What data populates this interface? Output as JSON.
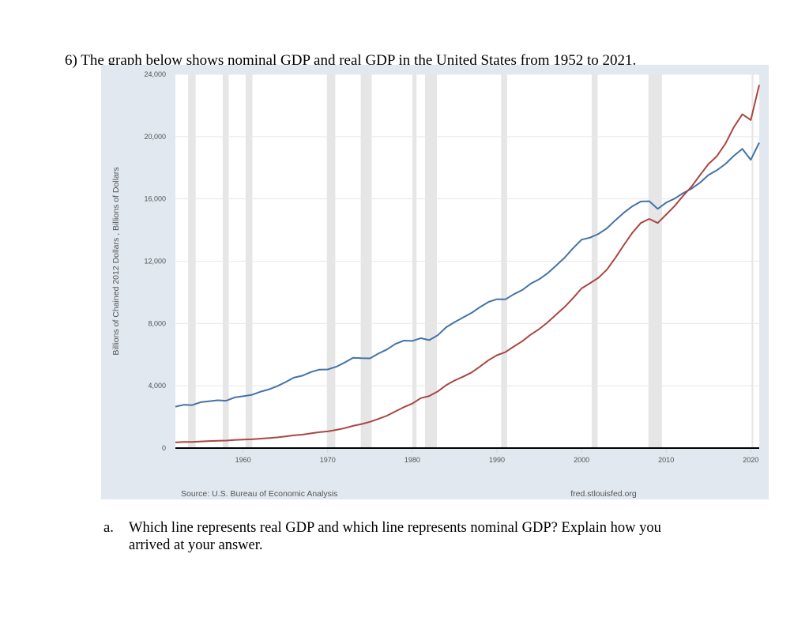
{
  "question": {
    "title": "6)  The graph below shows nominal GDP and real GDP in the United States from 1952 to 2021.",
    "part_a_label": "a.",
    "part_a_line1": "Which line represents real GDP and which line represents nominal GDP? Explain how you",
    "part_a_line2": "arrived at your answer."
  },
  "chart_data": {
    "type": "line",
    "ylabel": "Billions of Chained 2012 Dollars , Billions of Dollars",
    "xlim": [
      1952,
      2021
    ],
    "ylim": [
      0,
      24000
    ],
    "yticks": [
      "0",
      "4,000",
      "8,000",
      "12,000",
      "16,000",
      "20,000",
      "24,000"
    ],
    "ytick_values": [
      0,
      4000,
      8000,
      12000,
      16000,
      20000,
      24000
    ],
    "xticks": [
      "1960",
      "1970",
      "1980",
      "1990",
      "2000",
      "2010",
      "2020"
    ],
    "xtick_values": [
      1960,
      1970,
      1980,
      1990,
      2000,
      2010,
      2020
    ],
    "grid": true,
    "source": "Source: U.S. Bureau of Economic Analysis",
    "credit": "fred.stlouisfed.org",
    "recessions": [
      [
        1953.5,
        1954.4
      ],
      [
        1957.6,
        1958.3
      ],
      [
        1960.3,
        1961.1
      ],
      [
        1969.9,
        1970.9
      ],
      [
        1973.9,
        1975.2
      ],
      [
        1980.0,
        1980.5
      ],
      [
        1981.5,
        1982.9
      ],
      [
        1990.5,
        1991.2
      ],
      [
        2001.2,
        2001.9
      ],
      [
        2007.9,
        2009.5
      ],
      [
        2020.1,
        2020.3
      ]
    ],
    "colors": {
      "blue": "#4572a7",
      "red": "#aa4643",
      "recession": "#e6e6e6",
      "panel": "#e1e8f0"
    },
    "x": [
      1952,
      1953,
      1954,
      1955,
      1956,
      1957,
      1958,
      1959,
      1960,
      1961,
      1962,
      1963,
      1964,
      1965,
      1966,
      1967,
      1968,
      1969,
      1970,
      1971,
      1972,
      1973,
      1974,
      1975,
      1976,
      1977,
      1978,
      1979,
      1980,
      1981,
      1982,
      1983,
      1984,
      1985,
      1986,
      1987,
      1988,
      1989,
      1990,
      1991,
      1992,
      1993,
      1994,
      1995,
      1996,
      1997,
      1998,
      1999,
      2000,
      2001,
      2002,
      2003,
      2004,
      2005,
      2006,
      2007,
      2008,
      2009,
      2010,
      2011,
      2012,
      2013,
      2014,
      2015,
      2016,
      2017,
      2018,
      2019,
      2020,
      2021
    ],
    "series": [
      {
        "color": "#4572a7",
        "values": [
          2660,
          2780,
          2760,
          2950,
          3010,
          3070,
          3040,
          3250,
          3330,
          3410,
          3610,
          3760,
          3970,
          4230,
          4520,
          4650,
          4880,
          5040,
          5050,
          5220,
          5490,
          5800,
          5770,
          5760,
          6070,
          6330,
          6690,
          6900,
          6880,
          7060,
          6930,
          7240,
          7760,
          8090,
          8380,
          8680,
          9050,
          9380,
          9560,
          9550,
          9880,
          10150,
          10560,
          10840,
          11230,
          11720,
          12230,
          12830,
          13380,
          13510,
          13750,
          14110,
          14630,
          15110,
          15520,
          15830,
          15850,
          15360,
          15760,
          16020,
          16370,
          16660,
          17040,
          17530,
          17840,
          18240,
          18770,
          19210,
          18510,
          19610
        ]
      },
      {
        "color": "#aa4643",
        "values": [
          368,
          389,
          391,
          426,
          450,
          474,
          481,
          522,
          543,
          563,
          605,
          638,
          686,
          744,
          815,
          862,
          943,
          1019,
          1073,
          1165,
          1279,
          1425,
          1545,
          1685,
          1873,
          2082,
          2352,
          2627,
          2857,
          3207,
          3343,
          3634,
          4037,
          4339,
          4580,
          4855,
          5236,
          5642,
          5963,
          6158,
          6520,
          6859,
          7287,
          7640,
          8073,
          8577,
          9063,
          9631,
          10251,
          10582,
          10936,
          11458,
          12214,
          13037,
          13815,
          14452,
          14713,
          14449,
          14992,
          15543,
          16197,
          16785,
          17527,
          18238,
          18745,
          19543,
          20612,
          21433,
          21061,
          23315
        ]
      }
    ]
  }
}
